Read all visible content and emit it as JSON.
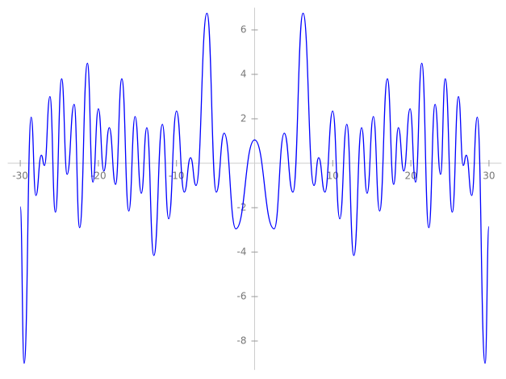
{
  "chart_data": {
    "type": "line",
    "x": [
      -30,
      -29.5,
      -28.6,
      -28.0,
      -27.3,
      -26.9,
      -26.2,
      -25.5,
      -24.7,
      -24.0,
      -23.1,
      -22.4,
      -21.4,
      -20.7,
      -20.0,
      -19.3,
      -18.6,
      -17.8,
      -17.0,
      -16.1,
      -15.3,
      -14.5,
      -13.8,
      -12.9,
      -11.8,
      -11.0,
      -10.0,
      -9.0,
      -8.2,
      -7.5,
      -6.1,
      -4.9,
      -3.9,
      -2.4,
      0,
      2.5,
      3.8,
      4.9,
      6.2,
      7.6,
      8.2,
      9.0,
      10.0,
      10.9,
      11.8,
      12.7,
      13.7,
      14.4,
      15.2,
      16.0,
      17.0,
      17.8,
      18.4,
      19.1,
      19.9,
      20.6,
      21.4,
      22.3,
      23.1,
      23.8,
      24.4,
      25.3,
      26.1,
      26.7,
      27.1,
      27.8,
      28.5,
      29.5,
      30
    ],
    "series": [
      {
        "color": "#0000ff",
        "values": [
          -1.96,
          -9.0,
          2.07,
          -1.45,
          0.36,
          -0.1,
          3.0,
          -2.2,
          3.8,
          -0.5,
          2.65,
          -2.9,
          4.5,
          -0.85,
          2.45,
          -0.35,
          1.6,
          -0.95,
          3.8,
          -2.15,
          2.1,
          -1.35,
          1.6,
          -4.15,
          1.75,
          -2.5,
          2.35,
          -1.3,
          0.25,
          -1.0,
          6.75,
          -1.3,
          1.35,
          -2.95,
          1.05,
          -2.95,
          1.35,
          -1.3,
          6.75,
          -1.0,
          0.25,
          -1.3,
          2.35,
          -2.5,
          1.75,
          -4.15,
          1.6,
          -1.35,
          2.1,
          -2.15,
          3.8,
          -0.95,
          1.6,
          -0.35,
          2.45,
          -0.85,
          4.5,
          -2.9,
          2.65,
          -0.5,
          3.8,
          -2.2,
          3.0,
          -0.1,
          0.36,
          -1.45,
          2.07,
          -9.0,
          -2.85
        ]
      }
    ],
    "xlim": [
      -31.6,
      31.6
    ],
    "ylim": [
      -9.3,
      7
    ],
    "xticks": [
      -30,
      -20,
      -10,
      10,
      20,
      30
    ],
    "yticks": [
      -8,
      -6,
      -4,
      -2,
      2,
      4,
      6
    ]
  }
}
